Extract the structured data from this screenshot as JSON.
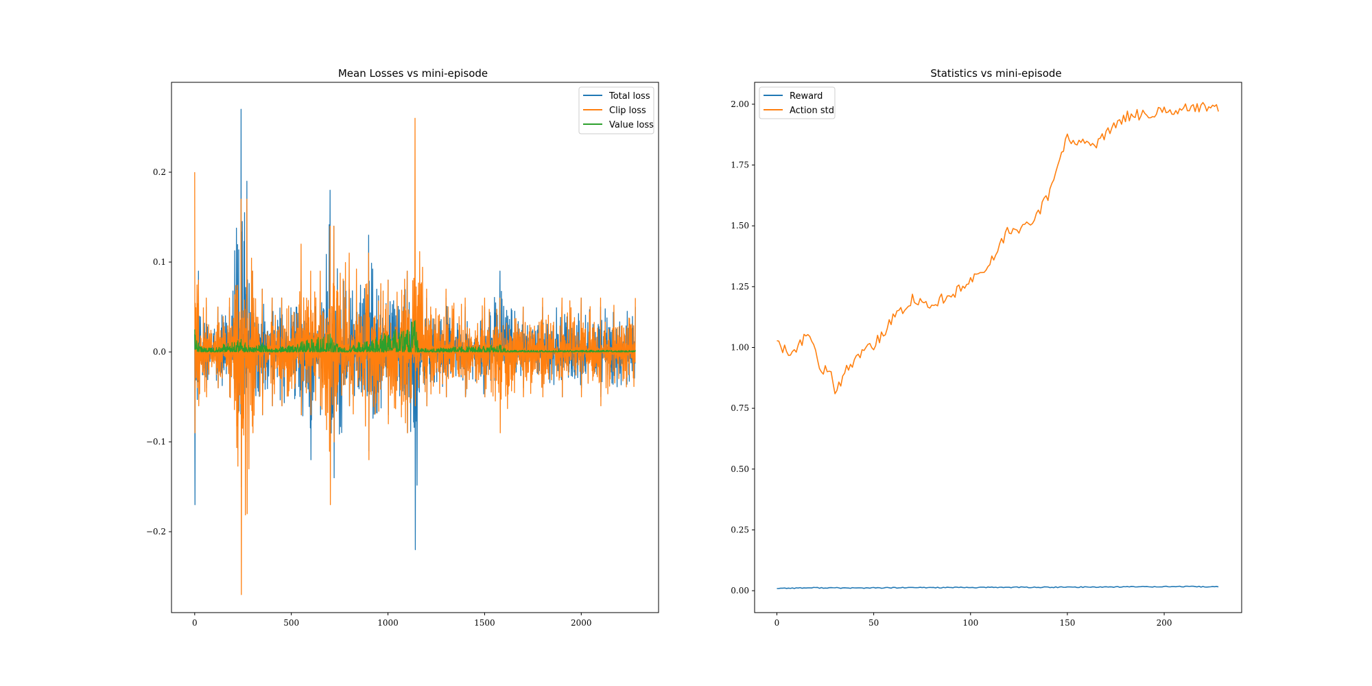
{
  "colors": {
    "blue": "#1f77b4",
    "orange": "#ff7f0e",
    "green": "#2ca02c"
  },
  "chart_data": [
    {
      "type": "line",
      "title": "Mean Losses vs mini-episode",
      "xlabel": "",
      "ylabel": "",
      "xlim": [
        -120,
        2400
      ],
      "ylim": [
        -0.29,
        0.3
      ],
      "xticks": [
        0,
        500,
        1000,
        1500,
        2000
      ],
      "xtick_labels": [
        "0",
        "500",
        "1000",
        "1500",
        "2000"
      ],
      "yticks": [
        -0.2,
        -0.1,
        0.0,
        0.1,
        0.2
      ],
      "ytick_labels": [
        "−0.2",
        "−0.1",
        "0.0",
        "0.1",
        "0.2"
      ],
      "legend_position": "top-right",
      "x_range": [
        0,
        2280
      ],
      "series": [
        {
          "name": "Total loss",
          "color": "#1f77b4",
          "mode": "oscillating",
          "band": [
            [
              0,
              -0.17,
              0.02
            ],
            [
              20,
              -0.05,
              0.09
            ],
            [
              60,
              -0.04,
              0.05
            ],
            [
              120,
              -0.04,
              0.05
            ],
            [
              180,
              -0.05,
              0.05
            ],
            [
              240,
              -0.15,
              0.27
            ],
            [
              270,
              -0.1,
              0.19
            ],
            [
              300,
              -0.08,
              0.09
            ],
            [
              350,
              -0.07,
              0.07
            ],
            [
              400,
              -0.06,
              0.06
            ],
            [
              450,
              -0.06,
              0.06
            ],
            [
              550,
              -0.07,
              0.08
            ],
            [
              600,
              -0.12,
              0.06
            ],
            [
              650,
              -0.07,
              0.06
            ],
            [
              700,
              -0.1,
              0.18
            ],
            [
              720,
              -0.14,
              0.14
            ],
            [
              800,
              -0.06,
              0.07
            ],
            [
              900,
              -0.11,
              0.13
            ],
            [
              1000,
              -0.07,
              0.08
            ],
            [
              1100,
              -0.09,
              0.09
            ],
            [
              1140,
              -0.22,
              0.03
            ],
            [
              1200,
              -0.06,
              0.06
            ],
            [
              1300,
              -0.05,
              0.06
            ],
            [
              1400,
              -0.05,
              0.05
            ],
            [
              1500,
              -0.05,
              0.05
            ],
            [
              1580,
              -0.04,
              0.09
            ],
            [
              1700,
              -0.04,
              0.05
            ],
            [
              1800,
              -0.04,
              0.05
            ],
            [
              1900,
              -0.05,
              0.05
            ],
            [
              2000,
              -0.04,
              0.06
            ],
            [
              2100,
              -0.05,
              0.05
            ],
            [
              2280,
              -0.05,
              0.05
            ]
          ]
        },
        {
          "name": "Clip loss",
          "color": "#ff7f0e",
          "mode": "oscillating",
          "band": [
            [
              0,
              -0.09,
              0.2
            ],
            [
              20,
              -0.06,
              0.08
            ],
            [
              60,
              -0.05,
              0.06
            ],
            [
              120,
              -0.04,
              0.05
            ],
            [
              180,
              -0.05,
              0.06
            ],
            [
              240,
              -0.27,
              0.17
            ],
            [
              270,
              -0.18,
              0.17
            ],
            [
              300,
              -0.09,
              0.09
            ],
            [
              350,
              -0.07,
              0.07
            ],
            [
              400,
              -0.06,
              0.06
            ],
            [
              450,
              -0.06,
              0.06
            ],
            [
              550,
              -0.07,
              0.12
            ],
            [
              600,
              -0.07,
              0.09
            ],
            [
              650,
              -0.06,
              0.09
            ],
            [
              700,
              -0.17,
              0.14
            ],
            [
              720,
              -0.1,
              0.14
            ],
            [
              800,
              -0.06,
              0.11
            ],
            [
              900,
              -0.12,
              0.11
            ],
            [
              1000,
              -0.08,
              0.08
            ],
            [
              1100,
              -0.09,
              0.09
            ],
            [
              1140,
              -0.06,
              0.26
            ],
            [
              1200,
              -0.06,
              0.07
            ],
            [
              1300,
              -0.05,
              0.07
            ],
            [
              1400,
              -0.05,
              0.06
            ],
            [
              1500,
              -0.05,
              0.06
            ],
            [
              1580,
              -0.09,
              0.06
            ],
            [
              1700,
              -0.05,
              0.05
            ],
            [
              1800,
              -0.05,
              0.06
            ],
            [
              1900,
              -0.05,
              0.06
            ],
            [
              2000,
              -0.05,
              0.06
            ],
            [
              2100,
              -0.06,
              0.06
            ],
            [
              2280,
              -0.05,
              0.06
            ]
          ]
        },
        {
          "name": "Value loss",
          "color": "#2ca02c",
          "mode": "oscillating",
          "band": [
            [
              0,
              0.0,
              0.025
            ],
            [
              20,
              0.0,
              0.01
            ],
            [
              60,
              0.0,
              0.004
            ],
            [
              240,
              0.0,
              0.014
            ],
            [
              300,
              0.0,
              0.005
            ],
            [
              350,
              0.0,
              0.01
            ],
            [
              400,
              0.0,
              0.003
            ],
            [
              700,
              0.0,
              0.02
            ],
            [
              760,
              0.0,
              0.004
            ],
            [
              1140,
              0.0,
              0.035
            ],
            [
              1160,
              0.0,
              0.004
            ],
            [
              1580,
              0.0,
              0.008
            ],
            [
              1620,
              0.0,
              0.002
            ],
            [
              2280,
              0.0,
              0.002
            ]
          ]
        }
      ]
    },
    {
      "type": "line",
      "title": "Statistics vs mini-episode",
      "xlabel": "",
      "ylabel": "",
      "xlim": [
        -11.5,
        240
      ],
      "ylim": [
        -0.09,
        2.09
      ],
      "xticks": [
        0,
        50,
        100,
        150,
        200
      ],
      "xtick_labels": [
        "0",
        "50",
        "100",
        "150",
        "200"
      ],
      "yticks": [
        0.0,
        0.25,
        0.5,
        0.75,
        1.0,
        1.25,
        1.5,
        1.75,
        2.0
      ],
      "ytick_labels": [
        "0.00",
        "0.25",
        "0.50",
        "0.75",
        "1.00",
        "1.25",
        "1.50",
        "1.75",
        "2.00"
      ],
      "legend_position": "top-left",
      "series": [
        {
          "name": "Reward",
          "color": "#1f77b4",
          "mode": "smooth",
          "x": [
            0,
            20,
            40,
            60,
            80,
            100,
            120,
            140,
            160,
            180,
            200,
            228
          ],
          "y": [
            0.01,
            0.012,
            0.011,
            0.012,
            0.013,
            0.013,
            0.014,
            0.014,
            0.015,
            0.016,
            0.017,
            0.016
          ]
        },
        {
          "name": "Action std",
          "color": "#ff7f0e",
          "mode": "noisy",
          "x": [
            0,
            3,
            6,
            9,
            12,
            15,
            18,
            21,
            24,
            27,
            30,
            33,
            36,
            40,
            45,
            50,
            55,
            60,
            65,
            70,
            75,
            80,
            85,
            90,
            95,
            100,
            105,
            110,
            115,
            120,
            125,
            130,
            135,
            140,
            145,
            150,
            155,
            160,
            165,
            170,
            175,
            180,
            190,
            200,
            210,
            220,
            228
          ],
          "y": [
            1.03,
            0.99,
            0.99,
            0.99,
            1.02,
            1.04,
            1.03,
            0.95,
            0.9,
            0.92,
            0.83,
            0.84,
            0.91,
            0.95,
            0.98,
            1.01,
            1.06,
            1.12,
            1.15,
            1.2,
            1.18,
            1.17,
            1.2,
            1.22,
            1.24,
            1.27,
            1.3,
            1.35,
            1.41,
            1.49,
            1.47,
            1.51,
            1.55,
            1.62,
            1.75,
            1.86,
            1.84,
            1.84,
            1.84,
            1.88,
            1.92,
            1.95,
            1.96,
            1.97,
            1.98,
            1.99,
            1.99
          ]
        }
      ]
    }
  ]
}
